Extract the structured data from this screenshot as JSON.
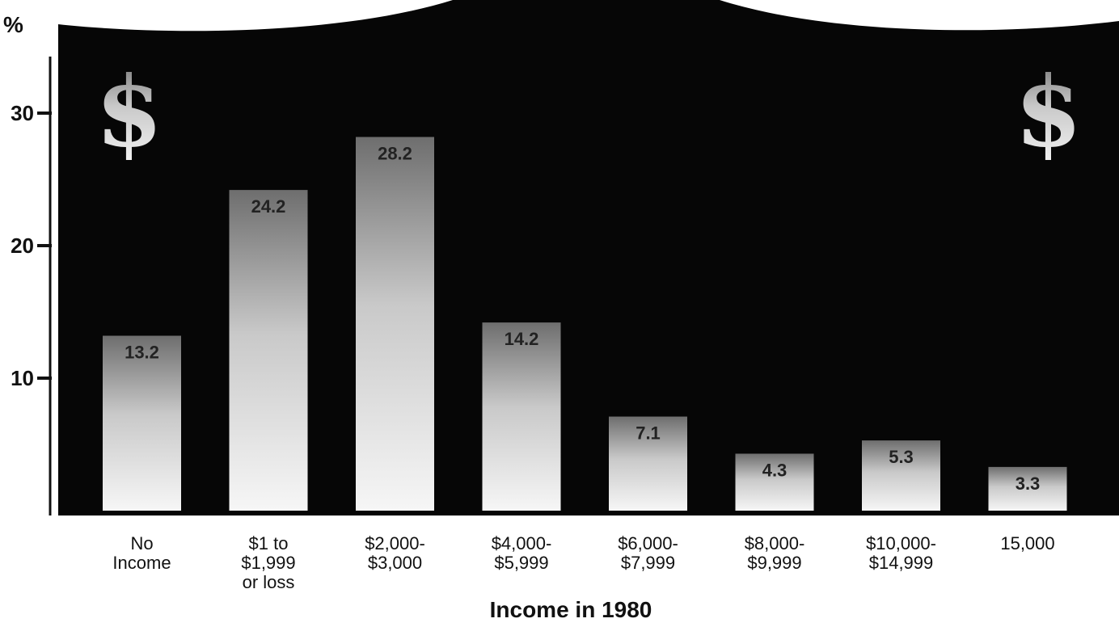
{
  "chart_data": {
    "type": "bar",
    "unit_label": "%",
    "xlabel": "Income in 1980",
    "ylim": [
      0,
      38
    ],
    "yticks": [
      10,
      20,
      30
    ],
    "categories": [
      [
        "No",
        "Income"
      ],
      [
        "$1 to",
        "$1,999",
        "or loss"
      ],
      [
        "$2,000-",
        "$3,000"
      ],
      [
        "$4,000-",
        "$5,999"
      ],
      [
        "$6,000-",
        "$7,999"
      ],
      [
        "$8,000-",
        "$9,999"
      ],
      [
        "$10,000-",
        "$14,999"
      ],
      [
        "15,000"
      ]
    ],
    "values": [
      13.2,
      24.2,
      28.2,
      14.2,
      7.1,
      4.3,
      5.3,
      3.3
    ],
    "value_labels": [
      "13.2",
      "24.2",
      "28.2",
      "14.2",
      "7.1",
      "4.3",
      "5.3",
      "3.3"
    ],
    "decoration": "$",
    "colors": {
      "panel": "#060606",
      "bar": "#f4f4f4",
      "bar_shade": "#9a9a9a",
      "text": "#111111"
    }
  }
}
